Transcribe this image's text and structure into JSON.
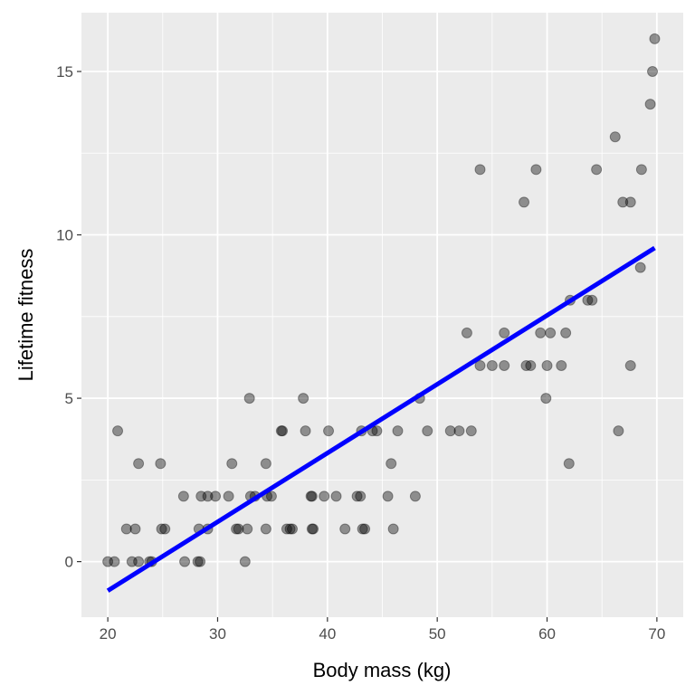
{
  "chart_data": {
    "type": "scatter",
    "title": "",
    "xlabel": "Body mass (kg)",
    "ylabel": "Lifetime fitness",
    "xlim": [
      17.6,
      72.4
    ],
    "ylim": [
      -1.7,
      16.8
    ],
    "xticks": [
      20,
      30,
      40,
      50,
      60,
      70
    ],
    "yticks": [
      0,
      5,
      10,
      15
    ],
    "grid": true,
    "point_color": "#000000",
    "point_alpha": 0.4,
    "line_color": "#0000ff",
    "fit_line": {
      "type": "linear",
      "x": [
        20,
        69.8
      ],
      "y": [
        -0.89,
        9.6
      ]
    },
    "points": [
      [
        20.0,
        0
      ],
      [
        20.6,
        0
      ],
      [
        22.2,
        0
      ],
      [
        22.8,
        0
      ],
      [
        23.8,
        0
      ],
      [
        24.0,
        0
      ],
      [
        27.0,
        0
      ],
      [
        28.2,
        0
      ],
      [
        28.4,
        0
      ],
      [
        32.5,
        0
      ],
      [
        21.7,
        1
      ],
      [
        22.5,
        1
      ],
      [
        24.9,
        1
      ],
      [
        25.2,
        1
      ],
      [
        28.3,
        1
      ],
      [
        29.1,
        1
      ],
      [
        31.7,
        1
      ],
      [
        31.9,
        1
      ],
      [
        32.7,
        1
      ],
      [
        34.4,
        1
      ],
      [
        36.3,
        1
      ],
      [
        36.6,
        1
      ],
      [
        36.8,
        1
      ],
      [
        38.6,
        1
      ],
      [
        38.7,
        1
      ],
      [
        41.6,
        1
      ],
      [
        43.2,
        1
      ],
      [
        43.4,
        1
      ],
      [
        46.0,
        1
      ],
      [
        26.9,
        2
      ],
      [
        28.5,
        2
      ],
      [
        29.1,
        2
      ],
      [
        29.8,
        2
      ],
      [
        31.0,
        2
      ],
      [
        33.0,
        2
      ],
      [
        33.4,
        2
      ],
      [
        34.5,
        2
      ],
      [
        34.9,
        2
      ],
      [
        38.5,
        2
      ],
      [
        38.6,
        2
      ],
      [
        39.7,
        2
      ],
      [
        40.8,
        2
      ],
      [
        42.7,
        2
      ],
      [
        43.0,
        2
      ],
      [
        45.5,
        2
      ],
      [
        48.0,
        2
      ],
      [
        22.8,
        3
      ],
      [
        24.8,
        3
      ],
      [
        31.3,
        3
      ],
      [
        34.4,
        3
      ],
      [
        45.8,
        3
      ],
      [
        62.0,
        3
      ],
      [
        20.9,
        4
      ],
      [
        35.8,
        4
      ],
      [
        35.9,
        4
      ],
      [
        38.0,
        4
      ],
      [
        40.1,
        4
      ],
      [
        43.1,
        4
      ],
      [
        44.1,
        4
      ],
      [
        44.5,
        4
      ],
      [
        46.4,
        4
      ],
      [
        49.1,
        4
      ],
      [
        51.2,
        4
      ],
      [
        52.0,
        4
      ],
      [
        53.1,
        4
      ],
      [
        66.5,
        4
      ],
      [
        32.9,
        5
      ],
      [
        37.8,
        5
      ],
      [
        48.4,
        5
      ],
      [
        59.9,
        5
      ],
      [
        53.9,
        6
      ],
      [
        55.0,
        6
      ],
      [
        56.1,
        6
      ],
      [
        58.1,
        6
      ],
      [
        58.5,
        6
      ],
      [
        60.0,
        6
      ],
      [
        61.3,
        6
      ],
      [
        67.6,
        6
      ],
      [
        52.7,
        7
      ],
      [
        56.1,
        7
      ],
      [
        59.4,
        7
      ],
      [
        60.3,
        7
      ],
      [
        61.7,
        7
      ],
      [
        62.1,
        8
      ],
      [
        63.7,
        8
      ],
      [
        64.1,
        8
      ],
      [
        68.5,
        9
      ],
      [
        57.9,
        11
      ],
      [
        66.9,
        11
      ],
      [
        67.6,
        11
      ],
      [
        53.9,
        12
      ],
      [
        59.0,
        12
      ],
      [
        64.5,
        12
      ],
      [
        68.6,
        12
      ],
      [
        66.2,
        13
      ],
      [
        69.4,
        14
      ],
      [
        69.6,
        15
      ],
      [
        69.8,
        16
      ]
    ]
  }
}
